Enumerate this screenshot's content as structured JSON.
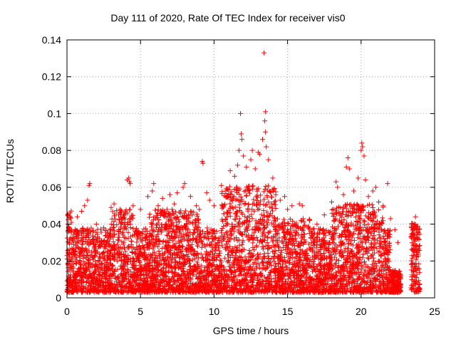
{
  "chart_data": {
    "type": "scatter",
    "title": "Day 111 of 2020, Rate Of TEC Index for receiver vis0",
    "xlabel": "GPS time / hours",
    "ylabel": "ROTI / TECUs",
    "xlim": [
      0,
      25
    ],
    "ylim": [
      0,
      0.14
    ],
    "xticks": [
      0,
      5,
      10,
      15,
      20,
      25
    ],
    "xtick_labels": [
      "0",
      "5",
      "10",
      "15",
      "20",
      "25"
    ],
    "yticks": [
      0,
      0.02,
      0.04,
      0.06,
      0.08,
      0.1,
      0.12,
      0.14
    ],
    "ytick_labels": [
      "0",
      "0.02",
      "0.04",
      "0.06",
      "0.08",
      "0.1",
      "0.12",
      "0.14"
    ],
    "grid": true,
    "marker": "+",
    "series": [
      {
        "name": "ROTI",
        "color": "#ff0000",
        "points": [
          [
            0.05,
            0.045
          ],
          [
            0.1,
            0.038
          ],
          [
            0.2,
            0.046
          ],
          [
            0.3,
            0.041
          ],
          [
            0.5,
            0.036
          ],
          [
            0.7,
            0.044
          ],
          [
            1.0,
            0.047
          ],
          [
            1.2,
            0.05
          ],
          [
            1.4,
            0.053
          ],
          [
            1.5,
            0.061
          ],
          [
            1.55,
            0.062
          ],
          [
            2.0,
            0.04
          ],
          [
            2.5,
            0.038
          ],
          [
            3.0,
            0.049
          ],
          [
            3.2,
            0.051
          ],
          [
            3.6,
            0.048
          ],
          [
            3.9,
            0.045
          ],
          [
            4.1,
            0.064
          ],
          [
            4.2,
            0.065
          ],
          [
            4.25,
            0.063
          ],
          [
            4.3,
            0.062
          ],
          [
            4.5,
            0.05
          ],
          [
            5.0,
            0.048
          ],
          [
            5.5,
            0.055
          ],
          [
            5.8,
            0.058
          ],
          [
            5.9,
            0.062
          ],
          [
            6.2,
            0.05
          ],
          [
            6.5,
            0.054
          ],
          [
            6.8,
            0.048
          ],
          [
            7.0,
            0.056
          ],
          [
            7.3,
            0.051
          ],
          [
            7.5,
            0.057
          ],
          [
            7.9,
            0.06
          ],
          [
            8.0,
            0.062
          ],
          [
            8.4,
            0.055
          ],
          [
            8.8,
            0.05
          ],
          [
            9.0,
            0.048
          ],
          [
            9.2,
            0.074
          ],
          [
            9.25,
            0.073
          ],
          [
            9.5,
            0.057
          ],
          [
            9.7,
            0.053
          ],
          [
            10.0,
            0.05
          ],
          [
            10.5,
            0.061
          ],
          [
            10.8,
            0.058
          ],
          [
            11.0,
            0.055
          ],
          [
            11.1,
            0.069
          ],
          [
            11.4,
            0.066
          ],
          [
            11.6,
            0.072
          ],
          [
            11.7,
            0.08
          ],
          [
            11.8,
            0.1
          ],
          [
            11.85,
            0.089
          ],
          [
            11.9,
            0.086
          ],
          [
            12.0,
            0.077
          ],
          [
            12.2,
            0.071
          ],
          [
            12.5,
            0.075
          ],
          [
            12.6,
            0.08
          ],
          [
            12.8,
            0.07
          ],
          [
            13.0,
            0.079
          ],
          [
            13.1,
            0.078
          ],
          [
            13.3,
            0.086
          ],
          [
            13.4,
            0.133
          ],
          [
            13.5,
            0.101
          ],
          [
            13.45,
            0.096
          ],
          [
            13.5,
            0.09
          ],
          [
            13.55,
            0.082
          ],
          [
            13.7,
            0.075
          ],
          [
            14.0,
            0.065
          ],
          [
            14.2,
            0.056
          ],
          [
            14.5,
            0.053
          ],
          [
            14.8,
            0.055
          ],
          [
            15.0,
            0.048
          ],
          [
            15.3,
            0.05
          ],
          [
            15.8,
            0.051
          ],
          [
            16.0,
            0.05
          ],
          [
            16.5,
            0.042
          ],
          [
            17.0,
            0.04
          ],
          [
            17.5,
            0.045
          ],
          [
            18.0,
            0.052
          ],
          [
            18.3,
            0.063
          ],
          [
            18.4,
            0.06
          ],
          [
            18.8,
            0.056
          ],
          [
            19.0,
            0.071
          ],
          [
            19.1,
            0.076
          ],
          [
            19.2,
            0.07
          ],
          [
            19.5,
            0.058
          ],
          [
            19.8,
            0.065
          ],
          [
            20.0,
            0.08
          ],
          [
            20.05,
            0.084
          ],
          [
            20.1,
            0.082
          ],
          [
            20.2,
            0.077
          ],
          [
            20.3,
            0.064
          ],
          [
            20.5,
            0.055
          ],
          [
            20.8,
            0.058
          ],
          [
            21.0,
            0.06
          ],
          [
            21.2,
            0.052
          ],
          [
            21.5,
            0.05
          ],
          [
            21.8,
            0.062
          ],
          [
            22.0,
            0.043
          ],
          [
            22.3,
            0.037
          ],
          [
            22.5,
            0.03
          ],
          [
            23.4,
            0.033
          ],
          [
            23.5,
            0.037
          ],
          [
            23.6,
            0.04
          ],
          [
            23.7,
            0.044
          ],
          [
            23.8,
            0.038
          ]
        ]
      }
    ]
  }
}
